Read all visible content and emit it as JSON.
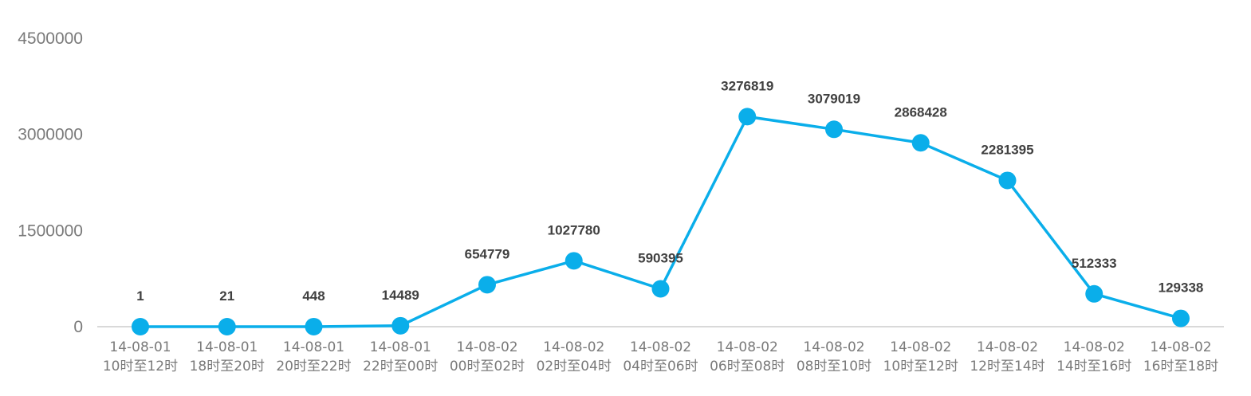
{
  "chart_data": {
    "type": "line",
    "title": "",
    "xlabel": "",
    "ylabel": "",
    "ylim": [
      0,
      4500000
    ],
    "yticks": [
      0,
      1500000,
      3000000,
      4500000
    ],
    "ytick_labels": [
      "0",
      "1500000",
      "3000000",
      "4500000"
    ],
    "grid": false,
    "legend": "none",
    "categories": [
      [
        "14-08-01",
        "10时至12时"
      ],
      [
        "14-08-01",
        "18时至20时"
      ],
      [
        "14-08-01",
        "20时至22时"
      ],
      [
        "14-08-01",
        "22时至00时"
      ],
      [
        "14-08-02",
        "00时至02时"
      ],
      [
        "14-08-02",
        "02时至04时"
      ],
      [
        "14-08-02",
        "04时至06时"
      ],
      [
        "14-08-02",
        "06时至08时"
      ],
      [
        "14-08-02",
        "08时至10时"
      ],
      [
        "14-08-02",
        "10时至12时"
      ],
      [
        "14-08-02",
        "12时至14时"
      ],
      [
        "14-08-02",
        "14时至16时"
      ],
      [
        "14-08-02",
        "16时至18时"
      ]
    ],
    "series": [
      {
        "color": "#0aaeea",
        "values": [
          1,
          21,
          448,
          14489,
          654779,
          1027780,
          590395,
          3276819,
          3079019,
          2868428,
          2281395,
          512333,
          129338
        ],
        "labels": [
          "1",
          "21",
          "448",
          "14489",
          "654779",
          "1027780",
          "590395",
          "3276819",
          "3079019",
          "2868428",
          "2281395",
          "512333",
          "129338"
        ]
      }
    ]
  }
}
